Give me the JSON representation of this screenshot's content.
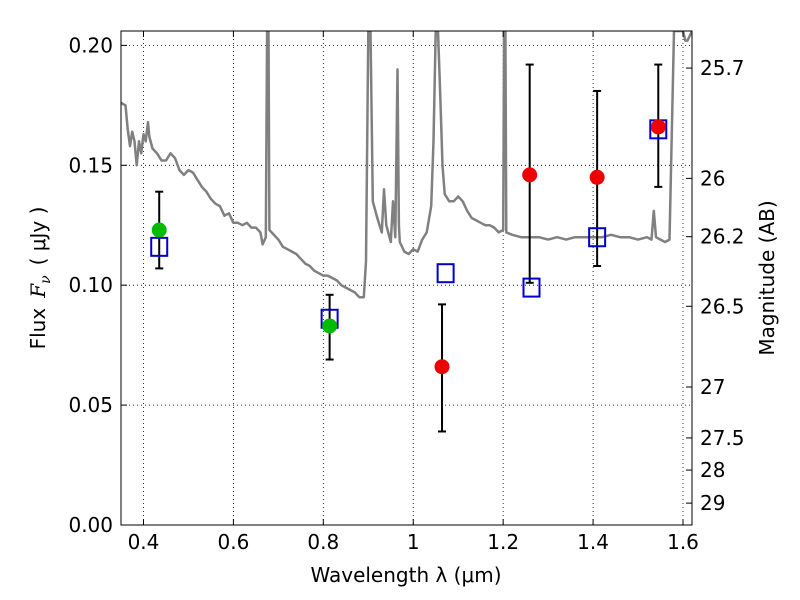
{
  "chart_data": {
    "type": "scatter",
    "xlabel": "Wavelength  λ (μm)",
    "ylabel_text": "Flux",
    "ylabel_symbol": "F",
    "ylabel_symbol_sub": "ν",
    "ylabel_units": "( μJy )",
    "ylabel_right": "Magnitude (AB)",
    "xlim": [
      0.35,
      1.62
    ],
    "ylim": [
      0.0,
      0.206
    ],
    "grid": true,
    "legend": "none",
    "x_ticks": [
      {
        "value": 0.4,
        "label": "0.4"
      },
      {
        "value": 0.6,
        "label": "0.6"
      },
      {
        "value": 0.8,
        "label": "0.8"
      },
      {
        "value": 1.0,
        "label": "1"
      },
      {
        "value": 1.2,
        "label": "1.2"
      },
      {
        "value": 1.4,
        "label": "1.4"
      },
      {
        "value": 1.6,
        "label": "1.6"
      }
    ],
    "y_ticks": [
      {
        "value": 0.0,
        "label": "0.00"
      },
      {
        "value": 0.05,
        "label": "0.05"
      },
      {
        "value": 0.1,
        "label": "0.10"
      },
      {
        "value": 0.15,
        "label": "0.15"
      },
      {
        "value": 0.2,
        "label": "0.20"
      }
    ],
    "mag_ticks": [
      {
        "value": 25.7,
        "label": "25.7"
      },
      {
        "value": 26.0,
        "label": "26"
      },
      {
        "value": 26.2,
        "label": "26.2"
      },
      {
        "value": 26.5,
        "label": "26.5"
      },
      {
        "value": 27.0,
        "label": "27"
      },
      {
        "value": 27.5,
        "label": "27.5"
      },
      {
        "value": 28.0,
        "label": "28"
      },
      {
        "value": 29.0,
        "label": "29"
      }
    ],
    "series": [
      {
        "marker": "circle",
        "color": "#00bb00",
        "points": [
          {
            "x": 0.435,
            "y": 0.123,
            "yerr_low": 0.107,
            "yerr_high": 0.139
          },
          {
            "x": 0.814,
            "y": 0.083,
            "yerr_low": 0.069,
            "yerr_high": 0.096
          }
        ]
      },
      {
        "marker": "circle",
        "color": "#ee0000",
        "points": [
          {
            "x": 1.064,
            "y": 0.066,
            "yerr_low": 0.039,
            "yerr_high": 0.092
          },
          {
            "x": 1.259,
            "y": 0.146,
            "yerr_low": 0.101,
            "yerr_high": 0.192
          },
          {
            "x": 1.409,
            "y": 0.145,
            "yerr_low": 0.108,
            "yerr_high": 0.181
          },
          {
            "x": 1.545,
            "y": 0.166,
            "yerr_low": 0.141,
            "yerr_high": 0.192
          }
        ]
      },
      {
        "marker": "open-square",
        "color": "#0000cc",
        "points": [
          {
            "x": 0.435,
            "y": 0.116
          },
          {
            "x": 0.814,
            "y": 0.086
          },
          {
            "x": 1.072,
            "y": 0.105
          },
          {
            "x": 1.263,
            "y": 0.099
          },
          {
            "x": 1.409,
            "y": 0.12
          },
          {
            "x": 1.545,
            "y": 0.165
          }
        ]
      }
    ],
    "spectrum": {
      "color": "#808080",
      "points": [
        [
          0.35,
          0.176
        ],
        [
          0.36,
          0.175
        ],
        [
          0.365,
          0.165
        ],
        [
          0.37,
          0.158
        ],
        [
          0.375,
          0.164
        ],
        [
          0.38,
          0.16
        ],
        [
          0.385,
          0.15
        ],
        [
          0.39,
          0.16
        ],
        [
          0.395,
          0.155
        ],
        [
          0.4,
          0.163
        ],
        [
          0.405,
          0.16
        ],
        [
          0.41,
          0.168
        ],
        [
          0.413,
          0.162
        ],
        [
          0.42,
          0.157
        ],
        [
          0.43,
          0.155
        ],
        [
          0.44,
          0.152
        ],
        [
          0.45,
          0.152
        ],
        [
          0.46,
          0.155
        ],
        [
          0.47,
          0.153
        ],
        [
          0.48,
          0.148
        ],
        [
          0.49,
          0.146
        ],
        [
          0.5,
          0.148
        ],
        [
          0.51,
          0.147
        ],
        [
          0.52,
          0.144
        ],
        [
          0.53,
          0.141
        ],
        [
          0.54,
          0.139
        ],
        [
          0.55,
          0.136
        ],
        [
          0.56,
          0.134
        ],
        [
          0.57,
          0.133
        ],
        [
          0.58,
          0.129
        ],
        [
          0.59,
          0.13
        ],
        [
          0.6,
          0.126
        ],
        [
          0.61,
          0.126
        ],
        [
          0.62,
          0.125
        ],
        [
          0.63,
          0.126
        ],
        [
          0.64,
          0.124
        ],
        [
          0.65,
          0.124
        ],
        [
          0.66,
          0.122
        ],
        [
          0.665,
          0.117
        ],
        [
          0.672,
          0.12
        ],
        [
          0.675,
          0.206
        ],
        [
          0.678,
          0.206
        ],
        [
          0.68,
          0.123
        ],
        [
          0.69,
          0.121
        ],
        [
          0.7,
          0.119
        ],
        [
          0.71,
          0.116
        ],
        [
          0.72,
          0.115
        ],
        [
          0.73,
          0.114
        ],
        [
          0.74,
          0.113
        ],
        [
          0.75,
          0.111
        ],
        [
          0.76,
          0.109
        ],
        [
          0.77,
          0.108
        ],
        [
          0.78,
          0.106
        ],
        [
          0.79,
          0.105
        ],
        [
          0.8,
          0.104
        ],
        [
          0.81,
          0.104
        ],
        [
          0.82,
          0.103
        ],
        [
          0.83,
          0.102
        ],
        [
          0.84,
          0.1
        ],
        [
          0.85,
          0.099
        ],
        [
          0.86,
          0.098
        ],
        [
          0.87,
          0.097
        ],
        [
          0.88,
          0.095
        ],
        [
          0.89,
          0.095
        ],
        [
          0.895,
          0.11
        ],
        [
          0.9,
          0.206
        ],
        [
          0.905,
          0.206
        ],
        [
          0.91,
          0.135
        ],
        [
          0.92,
          0.128
        ],
        [
          0.93,
          0.122
        ],
        [
          0.935,
          0.14
        ],
        [
          0.94,
          0.125
        ],
        [
          0.95,
          0.118
        ],
        [
          0.955,
          0.135
        ],
        [
          0.96,
          0.12
        ],
        [
          0.965,
          0.19
        ],
        [
          0.968,
          0.125
        ],
        [
          0.97,
          0.118
        ],
        [
          0.98,
          0.114
        ],
        [
          0.99,
          0.113
        ],
        [
          1.0,
          0.115
        ],
        [
          1.01,
          0.114
        ],
        [
          1.02,
          0.119
        ],
        [
          1.03,
          0.122
        ],
        [
          1.04,
          0.133
        ],
        [
          1.045,
          0.16
        ],
        [
          1.05,
          0.206
        ],
        [
          1.055,
          0.206
        ],
        [
          1.06,
          0.18
        ],
        [
          1.065,
          0.15
        ],
        [
          1.07,
          0.138
        ],
        [
          1.08,
          0.135
        ],
        [
          1.09,
          0.135
        ],
        [
          1.1,
          0.137
        ],
        [
          1.11,
          0.135
        ],
        [
          1.12,
          0.131
        ],
        [
          1.13,
          0.128
        ],
        [
          1.14,
          0.127
        ],
        [
          1.15,
          0.126
        ],
        [
          1.16,
          0.125
        ],
        [
          1.17,
          0.125
        ],
        [
          1.18,
          0.124
        ],
        [
          1.19,
          0.122
        ],
        [
          1.2,
          0.123
        ],
        [
          1.202,
          0.206
        ],
        [
          1.205,
          0.206
        ],
        [
          1.207,
          0.122
        ],
        [
          1.22,
          0.121
        ],
        [
          1.24,
          0.12
        ],
        [
          1.26,
          0.12
        ],
        [
          1.28,
          0.12
        ],
        [
          1.3,
          0.119
        ],
        [
          1.32,
          0.12
        ],
        [
          1.34,
          0.119
        ],
        [
          1.36,
          0.12
        ],
        [
          1.38,
          0.12
        ],
        [
          1.4,
          0.12
        ],
        [
          1.42,
          0.12
        ],
        [
          1.44,
          0.121
        ],
        [
          1.46,
          0.12
        ],
        [
          1.48,
          0.12
        ],
        [
          1.5,
          0.119
        ],
        [
          1.52,
          0.12
        ],
        [
          1.53,
          0.119
        ],
        [
          1.535,
          0.131
        ],
        [
          1.54,
          0.12
        ],
        [
          1.55,
          0.119
        ],
        [
          1.56,
          0.118
        ],
        [
          1.57,
          0.119
        ],
        [
          1.58,
          0.206
        ],
        [
          1.59,
          0.206
        ],
        [
          1.6,
          0.206
        ],
        [
          1.605,
          0.202
        ],
        [
          1.61,
          0.202
        ],
        [
          1.62,
          0.206
        ]
      ]
    }
  }
}
